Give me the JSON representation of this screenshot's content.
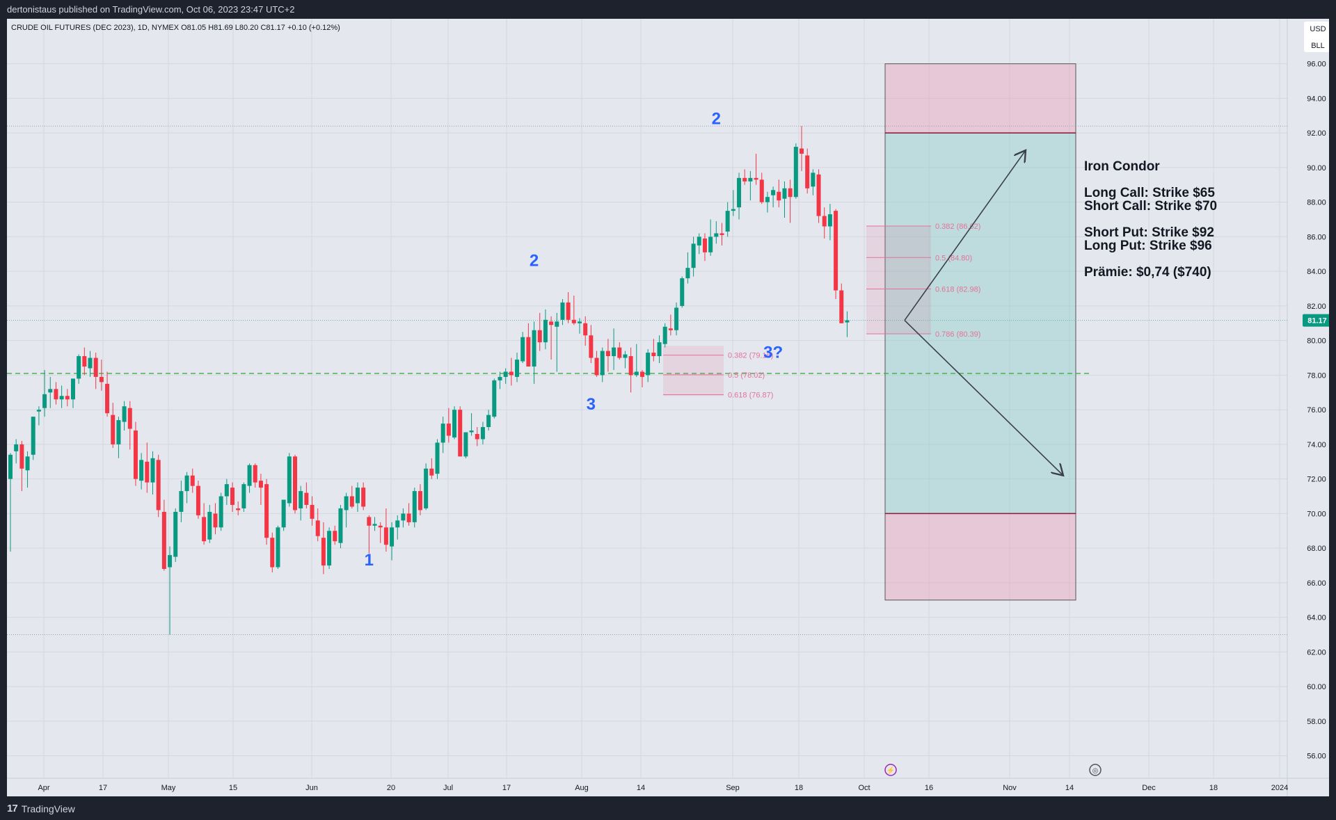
{
  "header": {
    "publisher_line": "dertonistaus published on TradingView.com, Oct 06, 2023 23:47 UTC+2"
  },
  "footer": {
    "brand": "TradingView",
    "brand_icon": "tradingview-logo-icon"
  },
  "chart_data": {
    "type": "candlestick",
    "title": "CRUDE OIL FUTURES (DEC 2023), 1D, NYMEX",
    "ohlc_readout": {
      "O": "81.05",
      "H": "81.69",
      "L": "80.20",
      "C": "81.17",
      "change": "+0.10 (+0.12%)"
    },
    "currency_label": "USD",
    "unit_label": "BLL",
    "last_price_label": "81.17",
    "colors": {
      "up": "#089981",
      "down": "#f23645",
      "fib": "#e3729a",
      "wave_label": "#2962ff",
      "green_line": "#4caf50"
    },
    "y_axis": {
      "min": 54.7,
      "max": 98.6,
      "ticks": [
        "96.00",
        "94.00",
        "92.00",
        "90.00",
        "88.00",
        "86.00",
        "84.00",
        "82.00",
        "80.00",
        "78.00",
        "76.00",
        "74.00",
        "72.00",
        "70.00",
        "68.00",
        "66.00",
        "64.00",
        "62.00",
        "60.00",
        "58.00",
        "56.00"
      ]
    },
    "x_axis": {
      "ticks": [
        "Apr",
        "17",
        "May",
        "15",
        "Jun",
        "20",
        "Jul",
        "17",
        "Aug",
        "14",
        "Sep",
        "18",
        "Oct",
        "16",
        "Nov",
        "14",
        "Dec",
        "18",
        "2024"
      ]
    },
    "candles": [
      [
        72.0,
        73.5,
        67.8,
        73.4
      ],
      [
        73.6,
        74.3,
        72.9,
        74.0
      ],
      [
        74.0,
        74.2,
        71.3,
        72.6
      ],
      [
        72.5,
        73.6,
        71.5,
        73.3
      ],
      [
        73.4,
        75.6,
        73.1,
        75.6
      ],
      [
        75.9,
        76.2,
        75.1,
        76.0
      ],
      [
        76.1,
        78.3,
        75.6,
        76.9
      ],
      [
        77.0,
        77.9,
        76.1,
        77.2
      ],
      [
        77.2,
        77.6,
        76.3,
        76.6
      ],
      [
        76.6,
        77.4,
        76.1,
        76.8
      ],
      [
        76.8,
        77.2,
        76.2,
        76.6
      ],
      [
        76.6,
        77.8,
        76.1,
        77.8
      ],
      [
        77.8,
        79.2,
        77.5,
        79.1
      ],
      [
        79.1,
        79.6,
        78.0,
        78.5
      ],
      [
        78.4,
        79.4,
        77.9,
        79.0
      ],
      [
        79.0,
        79.3,
        77.2,
        77.9
      ],
      [
        77.9,
        78.9,
        77.1,
        77.6
      ],
      [
        77.5,
        78.2,
        75.6,
        75.8
      ],
      [
        75.7,
        76.4,
        73.8,
        74.0
      ],
      [
        74.0,
        75.6,
        73.2,
        75.4
      ],
      [
        75.3,
        76.5,
        74.8,
        76.2
      ],
      [
        76.1,
        76.5,
        73.7,
        74.9
      ],
      [
        74.8,
        75.3,
        71.6,
        72.0
      ],
      [
        71.9,
        73.5,
        71.4,
        73.1
      ],
      [
        73.0,
        74.1,
        71.2,
        71.8
      ],
      [
        71.8,
        73.6,
        71.1,
        73.2
      ],
      [
        73.1,
        73.4,
        69.8,
        70.2
      ],
      [
        70.1,
        70.8,
        66.7,
        66.8
      ],
      [
        66.9,
        68.1,
        63.0,
        67.6
      ],
      [
        67.5,
        70.3,
        67.2,
        70.1
      ],
      [
        70.1,
        71.9,
        69.5,
        71.3
      ],
      [
        71.3,
        72.4,
        70.6,
        72.2
      ],
      [
        72.2,
        72.6,
        71.2,
        71.6
      ],
      [
        71.6,
        71.9,
        69.7,
        69.9
      ],
      [
        69.8,
        70.6,
        68.2,
        68.4
      ],
      [
        68.5,
        70.5,
        68.3,
        70.1
      ],
      [
        70.0,
        70.6,
        68.8,
        69.2
      ],
      [
        69.2,
        71.2,
        69.0,
        71.0
      ],
      [
        71.0,
        72.0,
        70.5,
        71.7
      ],
      [
        71.5,
        71.8,
        70.1,
        70.5
      ],
      [
        70.3,
        70.7,
        69.9,
        70.2
      ],
      [
        70.3,
        71.8,
        70.1,
        71.7
      ],
      [
        71.6,
        72.9,
        71.2,
        72.8
      ],
      [
        72.8,
        72.9,
        71.5,
        71.8
      ],
      [
        71.9,
        72.3,
        70.5,
        71.5
      ],
      [
        71.7,
        72.0,
        68.2,
        68.6
      ],
      [
        68.6,
        68.9,
        66.6,
        66.9
      ],
      [
        66.9,
        69.3,
        66.8,
        69.2
      ],
      [
        69.2,
        70.8,
        69.0,
        70.8
      ],
      [
        70.6,
        73.5,
        70.4,
        73.3
      ],
      [
        73.3,
        73.4,
        70.0,
        70.2
      ],
      [
        70.3,
        71.6,
        69.6,
        71.3
      ],
      [
        71.2,
        71.8,
        70.3,
        70.5
      ],
      [
        70.5,
        71.0,
        69.3,
        69.7
      ],
      [
        69.6,
        70.3,
        68.4,
        68.7
      ],
      [
        68.6,
        69.5,
        66.5,
        67.0
      ],
      [
        67.0,
        69.2,
        66.8,
        69.0
      ],
      [
        69.0,
        69.3,
        68.2,
        68.4
      ],
      [
        68.3,
        70.5,
        68.0,
        70.3
      ],
      [
        70.2,
        71.2,
        69.2,
        71.0
      ],
      [
        71.0,
        71.6,
        70.3,
        70.4
      ],
      [
        70.6,
        71.8,
        70.1,
        71.5
      ],
      [
        71.5,
        71.8,
        70.2,
        70.4
      ],
      [
        69.8,
        69.9,
        67.7,
        69.3
      ],
      [
        69.3,
        69.8,
        69.0,
        69.4
      ],
      [
        69.3,
        69.5,
        68.3,
        69.2
      ],
      [
        69.2,
        70.3,
        67.8,
        68.2
      ],
      [
        68.1,
        69.5,
        67.3,
        69.2
      ],
      [
        69.2,
        69.9,
        68.5,
        69.6
      ],
      [
        69.6,
        70.3,
        69.2,
        70.0
      ],
      [
        70.0,
        70.6,
        69.3,
        69.5
      ],
      [
        69.5,
        71.5,
        69.2,
        71.3
      ],
      [
        71.3,
        71.7,
        69.9,
        70.2
      ],
      [
        70.3,
        72.9,
        70.2,
        72.6
      ],
      [
        72.6,
        73.2,
        72.0,
        72.2
      ],
      [
        72.3,
        74.3,
        72.0,
        74.1
      ],
      [
        74.1,
        75.6,
        73.5,
        75.2
      ],
      [
        75.2,
        76.1,
        74.1,
        74.5
      ],
      [
        74.4,
        76.2,
        74.3,
        76.0
      ],
      [
        76.0,
        76.2,
        73.3,
        73.3
      ],
      [
        73.3,
        74.7,
        73.2,
        74.7
      ],
      [
        74.7,
        75.8,
        74.5,
        74.8
      ],
      [
        74.6,
        75.0,
        73.9,
        74.3
      ],
      [
        74.3,
        75.3,
        74.0,
        75.0
      ],
      [
        75.0,
        76.0,
        74.8,
        75.7
      ],
      [
        75.6,
        77.8,
        75.5,
        77.7
      ],
      [
        77.7,
        78.2,
        77.2,
        77.9
      ],
      [
        77.9,
        78.4,
        77.5,
        78.2
      ],
      [
        78.2,
        79.0,
        77.4,
        78.0
      ],
      [
        77.9,
        79.3,
        77.6,
        78.9
      ],
      [
        78.8,
        80.5,
        78.7,
        80.2
      ],
      [
        80.2,
        81.0,
        78.5,
        78.5
      ],
      [
        78.5,
        81.1,
        77.5,
        80.6
      ],
      [
        80.6,
        81.6,
        79.4,
        79.9
      ],
      [
        79.9,
        81.8,
        79.5,
        81.2
      ],
      [
        81.1,
        81.4,
        78.9,
        80.9
      ],
      [
        80.8,
        81.6,
        78.2,
        81.1
      ],
      [
        81.2,
        82.4,
        80.9,
        82.2
      ],
      [
        82.2,
        82.8,
        81.0,
        81.2
      ],
      [
        81.2,
        82.6,
        80.9,
        81.0
      ],
      [
        81.0,
        81.3,
        80.4,
        81.1
      ],
      [
        81.0,
        81.4,
        79.7,
        80.3
      ],
      [
        80.3,
        80.9,
        78.7,
        79.0
      ],
      [
        79.0,
        79.4,
        77.9,
        78.0
      ],
      [
        78.0,
        79.6,
        77.6,
        79.4
      ],
      [
        79.4,
        80.1,
        78.2,
        79.1
      ],
      [
        79.1,
        80.7,
        78.3,
        79.6
      ],
      [
        79.6,
        79.9,
        78.9,
        79.0
      ],
      [
        79.0,
        79.4,
        78.4,
        79.2
      ],
      [
        79.1,
        79.6,
        77.0,
        78.0
      ],
      [
        78.0,
        79.8,
        77.9,
        78.2
      ],
      [
        78.2,
        78.3,
        77.3,
        77.9
      ],
      [
        78.0,
        79.5,
        77.6,
        79.3
      ],
      [
        79.3,
        80.1,
        78.8,
        79.1
      ],
      [
        79.1,
        80.3,
        78.7,
        79.9
      ],
      [
        79.8,
        81.0,
        79.6,
        80.8
      ],
      [
        80.7,
        81.5,
        80.3,
        80.6
      ],
      [
        80.6,
        82.2,
        80.3,
        81.9
      ],
      [
        82.0,
        83.7,
        81.9,
        83.6
      ],
      [
        83.6,
        85.1,
        83.3,
        84.2
      ],
      [
        84.2,
        86.0,
        83.7,
        85.6
      ],
      [
        85.5,
        86.2,
        85.0,
        86.0
      ],
      [
        85.9,
        86.2,
        84.6,
        85.1
      ],
      [
        85.1,
        87.0,
        84.9,
        86.0
      ],
      [
        86.0,
        86.9,
        85.6,
        86.2
      ],
      [
        86.2,
        86.8,
        85.5,
        86.1
      ],
      [
        86.3,
        88.0,
        86.0,
        87.5
      ],
      [
        87.5,
        88.7,
        87.2,
        87.6
      ],
      [
        87.7,
        89.7,
        87.0,
        89.4
      ],
      [
        89.4,
        89.9,
        89.0,
        89.2
      ],
      [
        89.2,
        89.8,
        88.1,
        89.4
      ],
      [
        89.4,
        90.8,
        89.0,
        89.3
      ],
      [
        89.3,
        89.7,
        87.9,
        88.0
      ],
      [
        88.0,
        88.6,
        87.4,
        88.3
      ],
      [
        88.4,
        88.9,
        87.7,
        88.7
      ],
      [
        88.6,
        89.3,
        87.7,
        88.1
      ],
      [
        88.2,
        89.2,
        87.1,
        88.8
      ],
      [
        88.8,
        89.3,
        86.8,
        88.3
      ],
      [
        88.3,
        91.4,
        88.2,
        91.2
      ],
      [
        91.1,
        92.4,
        89.8,
        90.8
      ],
      [
        90.7,
        91.1,
        88.5,
        88.8
      ],
      [
        88.9,
        89.9,
        88.4,
        89.7
      ],
      [
        89.6,
        89.9,
        86.8,
        87.2
      ],
      [
        87.2,
        87.7,
        85.9,
        86.6
      ],
      [
        86.6,
        87.9,
        85.8,
        87.3
      ],
      [
        87.5,
        87.6,
        82.4,
        82.9
      ],
      [
        82.9,
        83.3,
        81.0,
        81.0
      ],
      [
        81.05,
        81.69,
        80.2,
        81.17
      ]
    ],
    "wave_labels": [
      {
        "text": "1",
        "date_index": 63,
        "price": 67.0
      },
      {
        "text": "2",
        "date_index": 92,
        "price": 84.3
      },
      {
        "text": "3",
        "date_index": 102,
        "price": 76.0
      },
      {
        "text": "2",
        "date_index": 124,
        "price": 92.5
      },
      {
        "text": "3?",
        "date_index": 134,
        "price": 79.0
      }
    ],
    "fib_retracements": [
      {
        "levels": [
          {
            "label": "0.382 (79.16)",
            "price": 79.16
          },
          {
            "label": "0.5 (78.02)",
            "price": 78.02
          },
          {
            "label": "0.618 (76.87)",
            "price": 76.87
          }
        ]
      },
      {
        "levels": [
          {
            "label": "0.382 (86.62)",
            "price": 86.62
          },
          {
            "label": "0.5 (84.80)",
            "price": 84.8
          },
          {
            "label": "0.618 (82.98)",
            "price": 82.98
          },
          {
            "label": "0.786 (80.39)",
            "price": 80.39
          }
        ]
      }
    ],
    "horizontal_lines": [
      {
        "price": 92.4,
        "style": "dotted"
      },
      {
        "price": 63.0,
        "style": "dotted"
      },
      {
        "price": 78.1,
        "style": "dashed-green"
      }
    ],
    "iron_condor_zones": [
      {
        "from": 92,
        "to": 96,
        "kind": "loss"
      },
      {
        "from": 70,
        "to": 92,
        "kind": "profit"
      },
      {
        "from": 65,
        "to": 70,
        "kind": "loss"
      }
    ],
    "projection_arrows": [
      {
        "from_price": 81.17,
        "to_price": 91.0
      },
      {
        "from_price": 81.17,
        "to_price": 72.2
      }
    ],
    "annotation": {
      "title": "Iron Condor",
      "lines": [
        "Long Call: Strike $65",
        "Short Call: Strike $70",
        "",
        "Short Put: Strike $92",
        "Long Put: Strike $96",
        "",
        "Prämie: $0,74 ($740)"
      ]
    }
  }
}
